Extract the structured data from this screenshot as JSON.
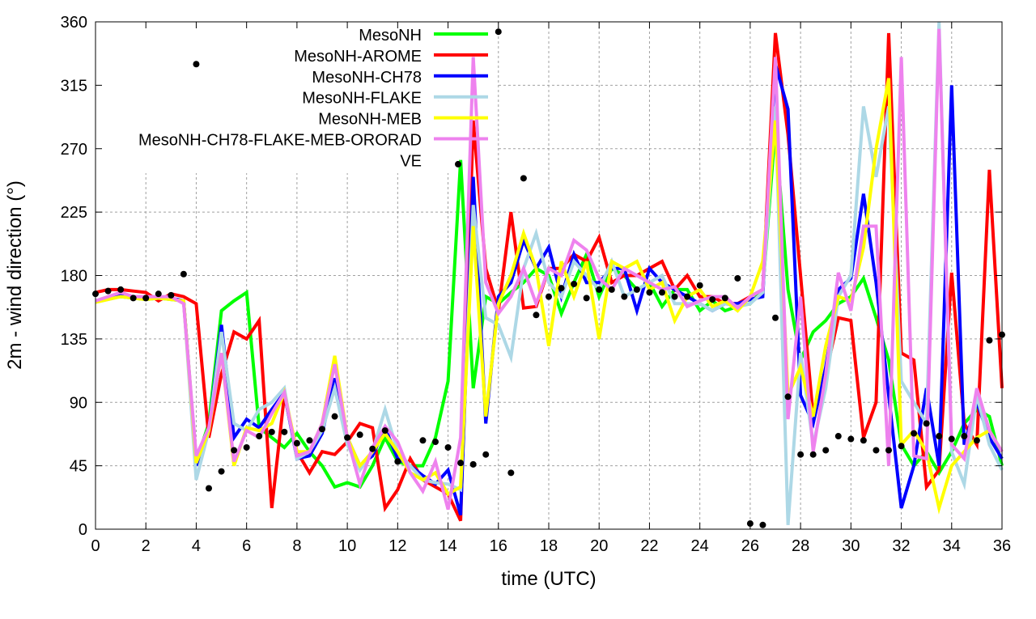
{
  "chart_data": {
    "type": "line",
    "title": "",
    "xlabel": "time (UTC)",
    "ylabel": "2m - wind direction (°)",
    "xlim": [
      0,
      36
    ],
    "ylim": [
      0,
      360
    ],
    "xticks": [
      0,
      2,
      4,
      6,
      8,
      10,
      12,
      14,
      16,
      18,
      20,
      22,
      24,
      26,
      28,
      30,
      32,
      34,
      36
    ],
    "yticks": [
      0,
      45,
      90,
      135,
      180,
      225,
      270,
      315,
      360
    ],
    "grid": true,
    "legend_position": "top-left-inside",
    "x_step": 0.5,
    "series": [
      {
        "name": "MesoNH",
        "color": "#00ff00",
        "values": [
          162,
          164,
          165,
          164,
          163,
          164,
          163,
          162,
          48,
          75,
          155,
          162,
          168,
          72,
          65,
          58,
          68,
          55,
          45,
          30,
          33,
          30,
          45,
          65,
          48,
          45,
          45,
          65,
          105,
          262,
          100,
          165,
          160,
          168,
          175,
          185,
          180,
          153,
          175,
          195,
          165,
          185,
          180,
          170,
          175,
          158,
          170,
          170,
          155,
          162,
          155,
          158,
          160,
          170,
          285,
          170,
          120,
          140,
          148,
          160,
          165,
          178,
          150,
          120,
          60,
          45,
          55,
          40,
          55,
          75,
          85,
          80,
          45
        ]
      },
      {
        "name": "MesoNH-AROME",
        "color": "#ff0000",
        "values": [
          168,
          170,
          170,
          169,
          168,
          162,
          167,
          165,
          160,
          65,
          110,
          140,
          135,
          148,
          15,
          95,
          55,
          40,
          55,
          53,
          62,
          75,
          72,
          15,
          28,
          50,
          35,
          30,
          25,
          6,
          290,
          185,
          155,
          225,
          157,
          158,
          185,
          185,
          195,
          190,
          207,
          175,
          180,
          180,
          185,
          190,
          170,
          180,
          165,
          165,
          160,
          160,
          165,
          170,
          352,
          280,
          180,
          80,
          110,
          150,
          148,
          65,
          90,
          352,
          125,
          120,
          30,
          42,
          182,
          75,
          60,
          255,
          100
        ]
      },
      {
        "name": "MesoNH-CH78",
        "color": "#0000ff",
        "values": [
          162,
          164,
          166,
          164,
          164,
          164,
          164,
          162,
          45,
          70,
          145,
          65,
          78,
          72,
          85,
          97,
          50,
          52,
          68,
          107,
          65,
          45,
          52,
          72,
          50,
          45,
          38,
          32,
          42,
          10,
          250,
          75,
          165,
          175,
          205,
          185,
          200,
          165,
          195,
          175,
          175,
          185,
          185,
          155,
          185,
          175,
          170,
          165,
          160,
          155,
          160,
          160,
          163,
          165,
          330,
          298,
          95,
          75,
          115,
          170,
          178,
          238,
          175,
          95,
          15,
          45,
          100,
          45,
          315,
          60,
          90,
          65,
          50
        ]
      },
      {
        "name": "MesoNH-FLAKE",
        "color": "#add8e6",
        "values": [
          161,
          163,
          165,
          164,
          163,
          164,
          163,
          162,
          35,
          70,
          140,
          75,
          70,
          85,
          90,
          100,
          50,
          55,
          70,
          100,
          60,
          42,
          55,
          85,
          55,
          45,
          35,
          33,
          32,
          28,
          230,
          150,
          145,
          122,
          185,
          210,
          175,
          165,
          190,
          180,
          170,
          190,
          165,
          170,
          175,
          180,
          160,
          160,
          160,
          155,
          160,
          158,
          160,
          168,
          300,
          3,
          125,
          60,
          100,
          165,
          180,
          300,
          250,
          300,
          105,
          90,
          75,
          360,
          55,
          32,
          95,
          60,
          42
        ]
      },
      {
        "name": "MesoNH-MEB",
        "color": "#ffff00",
        "values": [
          161,
          163,
          165,
          164,
          163,
          164,
          163,
          162,
          47,
          70,
          125,
          45,
          72,
          70,
          75,
          97,
          55,
          55,
          75,
          123,
          65,
          45,
          55,
          68,
          55,
          40,
          35,
          40,
          25,
          30,
          215,
          80,
          160,
          180,
          210,
          185,
          130,
          190,
          165,
          190,
          135,
          190,
          185,
          190,
          170,
          175,
          148,
          165,
          170,
          158,
          162,
          155,
          165,
          190,
          290,
          95,
          115,
          80,
          130,
          165,
          162,
          200,
          270,
          320,
          60,
          70,
          55,
          15,
          45,
          55,
          65,
          70,
          55
        ]
      },
      {
        "name": "MesoNH-CH78-FLAKE-MEB-ORORAD",
        "color": "#ee82ee",
        "values": [
          162,
          165,
          168,
          165,
          165,
          165,
          165,
          160,
          52,
          72,
          125,
          48,
          70,
          65,
          82,
          97,
          52,
          55,
          75,
          117,
          65,
          32,
          58,
          73,
          62,
          40,
          27,
          48,
          14,
          65,
          335,
          175,
          153,
          165,
          185,
          160,
          185,
          180,
          205,
          198,
          178,
          170,
          185,
          180,
          175,
          170,
          172,
          158,
          162,
          165,
          165,
          157,
          165,
          170,
          335,
          78,
          165,
          55,
          110,
          182,
          155,
          215,
          215,
          45,
          335,
          52,
          50,
          355,
          60,
          50,
          100,
          70,
          55
        ]
      }
    ],
    "points": {
      "name": "VE",
      "color": "#000000",
      "xy": [
        [
          0,
          167
        ],
        [
          0.5,
          169
        ],
        [
          1,
          170
        ],
        [
          1.5,
          164
        ],
        [
          2,
          164
        ],
        [
          2.5,
          167
        ],
        [
          3,
          166
        ],
        [
          3.5,
          181
        ],
        [
          4,
          330
        ],
        [
          4.5,
          29
        ],
        [
          5,
          41
        ],
        [
          5.5,
          56
        ],
        [
          6,
          58
        ],
        [
          6.5,
          66
        ],
        [
          7,
          69
        ],
        [
          7.5,
          69
        ],
        [
          8,
          61
        ],
        [
          8.5,
          63
        ],
        [
          9,
          71
        ],
        [
          9.5,
          80
        ],
        [
          10,
          65
        ],
        [
          10.5,
          67
        ],
        [
          11,
          57
        ],
        [
          11.5,
          70
        ],
        [
          12,
          48
        ],
        [
          13,
          63
        ],
        [
          13.5,
          62
        ],
        [
          14,
          58
        ],
        [
          14.4,
          259
        ],
        [
          14.5,
          47
        ],
        [
          15,
          46
        ],
        [
          15.5,
          53
        ],
        [
          16,
          353
        ],
        [
          16.5,
          40
        ],
        [
          17,
          249
        ],
        [
          17.5,
          152
        ],
        [
          18,
          165
        ],
        [
          18.5,
          171
        ],
        [
          19,
          174
        ],
        [
          19.5,
          164
        ],
        [
          20,
          170
        ],
        [
          20.5,
          170
        ],
        [
          21,
          165
        ],
        [
          21.5,
          170
        ],
        [
          22,
          168
        ],
        [
          22.5,
          168
        ],
        [
          23,
          165
        ],
        [
          23.5,
          165
        ],
        [
          24,
          173
        ],
        [
          24.5,
          163
        ],
        [
          25,
          164
        ],
        [
          25.5,
          178
        ],
        [
          26,
          4
        ],
        [
          26.5,
          3
        ],
        [
          27,
          150
        ],
        [
          27.5,
          94
        ],
        [
          28,
          53
        ],
        [
          28.5,
          53
        ],
        [
          29,
          56
        ],
        [
          29.5,
          66
        ],
        [
          30,
          64
        ],
        [
          30.5,
          63
        ],
        [
          31,
          56
        ],
        [
          31.5,
          56
        ],
        [
          32,
          59
        ],
        [
          32.5,
          68
        ],
        [
          33,
          75
        ],
        [
          33.5,
          66
        ],
        [
          34,
          64
        ],
        [
          34.5,
          66
        ],
        [
          35,
          63
        ],
        [
          35.5,
          134
        ],
        [
          36,
          138
        ]
      ]
    }
  }
}
